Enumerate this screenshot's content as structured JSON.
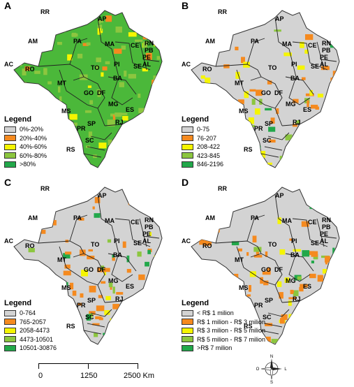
{
  "panels": [
    {
      "label": "A",
      "legend_title": "Legend",
      "legend": [
        {
          "label": "0%-20%",
          "color": "#d3d3d3"
        },
        {
          "label": "20%-40%",
          "color": "#f58a1f"
        },
        {
          "label": "40%-60%",
          "color": "#f5f500"
        },
        {
          "label": "60%-80%",
          "color": "#8cc63f"
        },
        {
          "label": ">80%",
          "color": "#22a84a"
        }
      ]
    },
    {
      "label": "B",
      "legend_title": "Legend",
      "legend": [
        {
          "label": "0-75",
          "color": "#d3d3d3"
        },
        {
          "label": "76-207",
          "color": "#f58a1f"
        },
        {
          "label": "208-422",
          "color": "#f5f500"
        },
        {
          "label": "423-845",
          "color": "#8cc63f"
        },
        {
          "label": "846-2196",
          "color": "#22a84a"
        }
      ]
    },
    {
      "label": "C",
      "legend_title": "Legend",
      "legend": [
        {
          "label": "0-764",
          "color": "#d3d3d3"
        },
        {
          "label": "765-2057",
          "color": "#f58a1f"
        },
        {
          "label": "2058-4473",
          "color": "#f5f500"
        },
        {
          "label": "4473-10501",
          "color": "#8cc63f"
        },
        {
          "label": "10501-30876",
          "color": "#22a84a"
        }
      ]
    },
    {
      "label": "D",
      "legend_title": "Legend",
      "legend": [
        {
          "label": "< R$ 1 milion",
          "color": "#d3d3d3"
        },
        {
          "label": "R$ 1 milion - R$ 3 milion",
          "color": "#f58a1f"
        },
        {
          "label": "R$ 3 milion - R$ 5 milion",
          "color": "#f5f500"
        },
        {
          "label": "R$ 5 milion - R$ 7 milion",
          "color": "#8cc63f"
        },
        {
          "label": ">R$ 7 milion",
          "color": "#22a84a"
        }
      ]
    }
  ],
  "states": [
    "RR",
    "AP",
    "AM",
    "PA",
    "MA",
    "CE",
    "RN",
    "PB",
    "PE",
    "AL",
    "SE",
    "AC",
    "RO",
    "TO",
    "PI",
    "BA",
    "MT",
    "GO",
    "DF",
    "MG",
    "ES",
    "MS",
    "SP",
    "RJ",
    "PR",
    "SC",
    "RS"
  ],
  "map_fill": [
    "#4bb83a",
    "#d3d3d3",
    "#d3d3d3",
    "#d3d3d3"
  ],
  "scale": {
    "labels": [
      "0",
      "1250",
      "2500 Km"
    ]
  },
  "compass": {
    "n": "N",
    "s": "S",
    "e": "L",
    "w": "O"
  }
}
